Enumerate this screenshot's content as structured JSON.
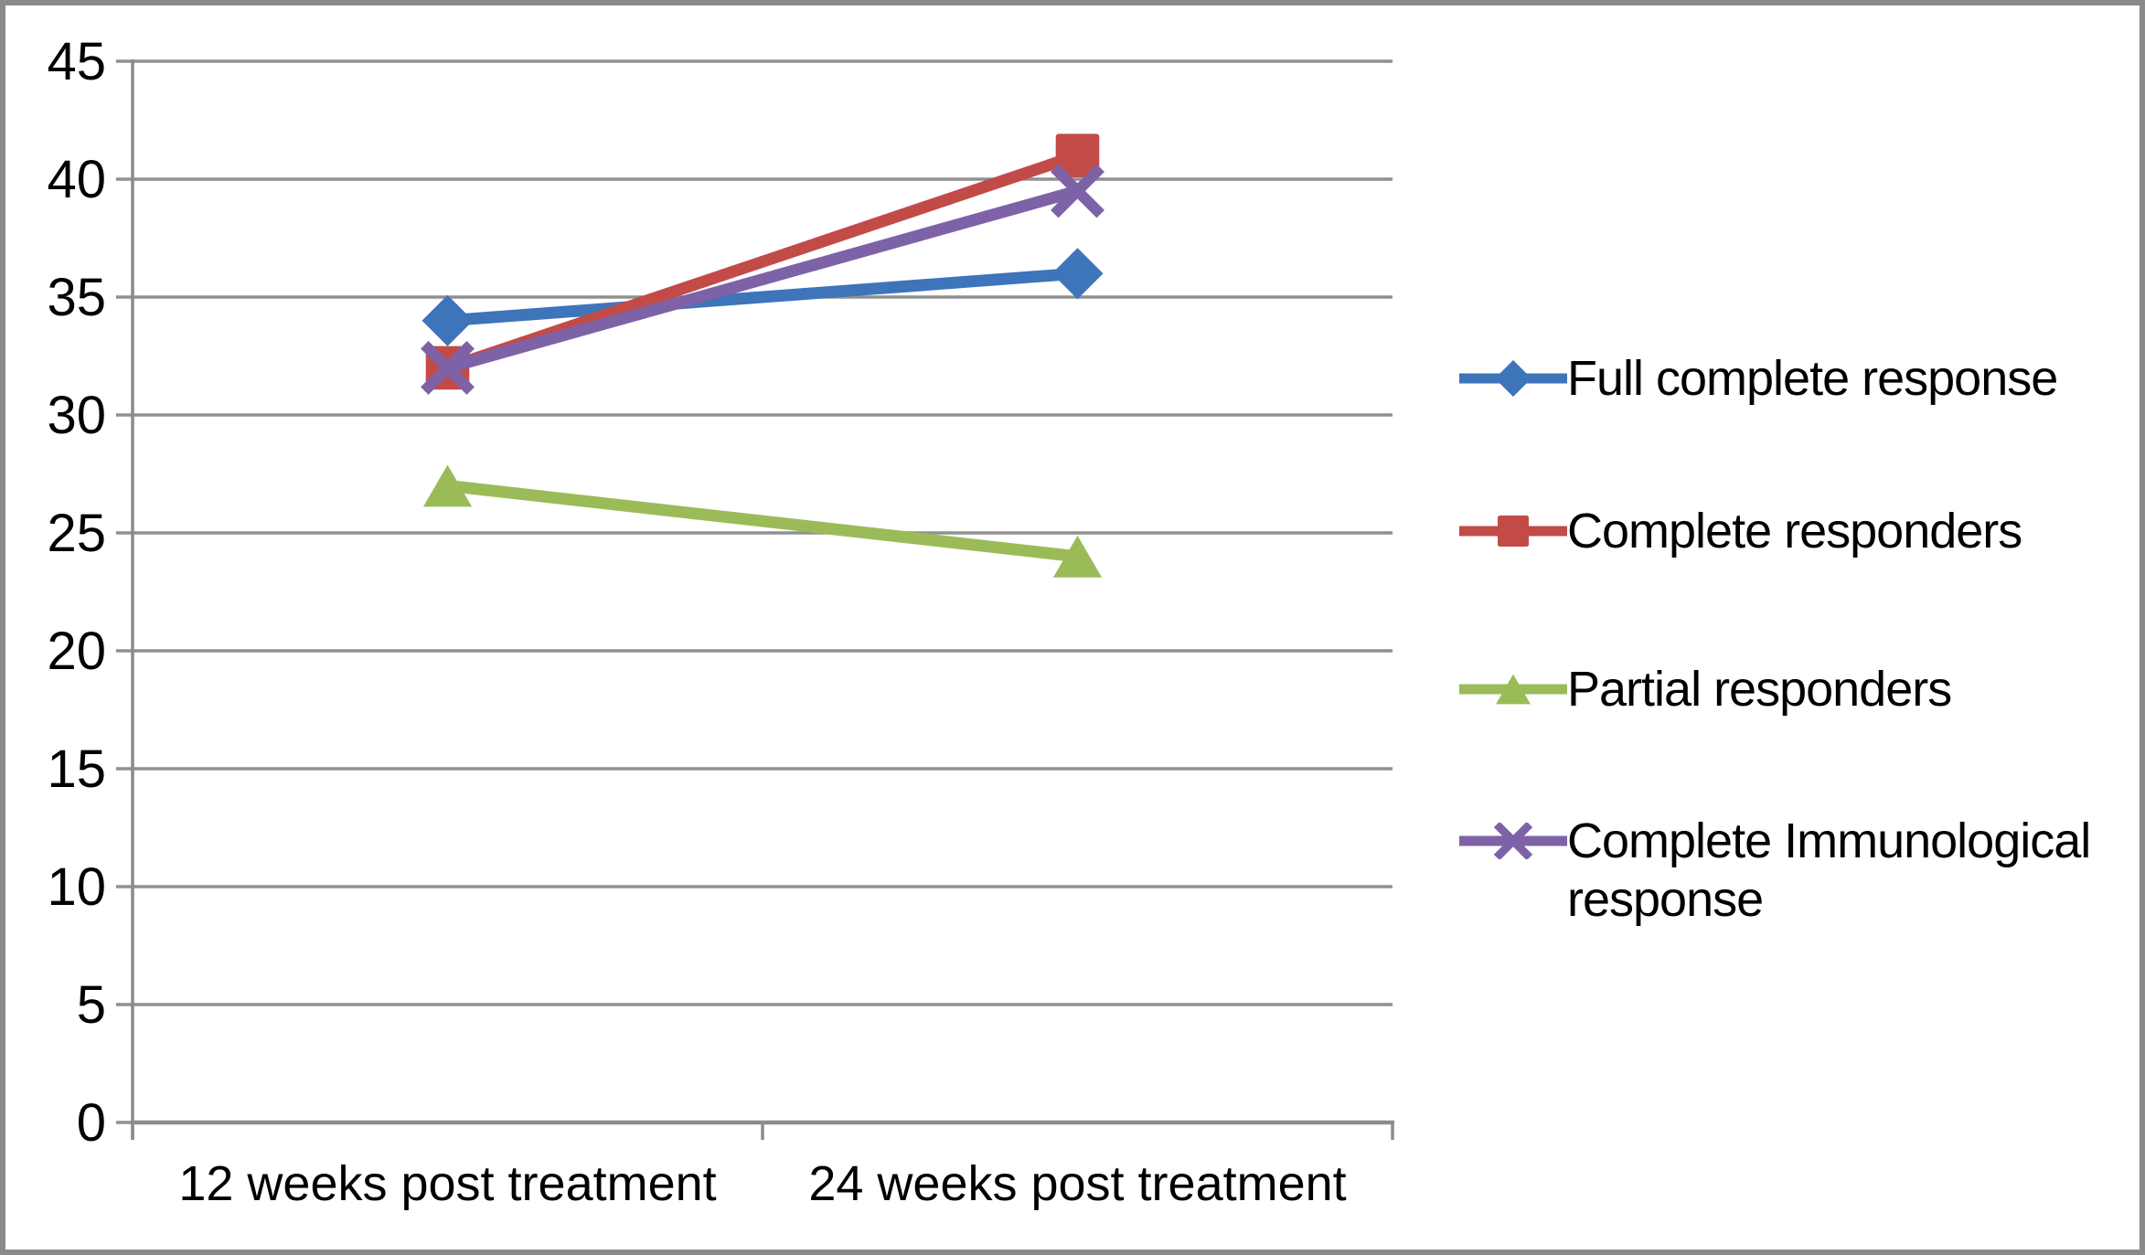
{
  "chart_data": {
    "type": "line",
    "categories": [
      "12 weeks post treatment",
      "24 weeks post treatment"
    ],
    "series": [
      {
        "name": "Full complete response",
        "marker": "diamond",
        "color": "#3E74BA",
        "values": [
          34,
          36
        ]
      },
      {
        "name": "Complete responders",
        "marker": "square",
        "color": "#C24B48",
        "values": [
          32,
          41
        ]
      },
      {
        "name": "Partial responders",
        "marker": "triangle",
        "color": "#9BBB59",
        "values": [
          27,
          24
        ]
      },
      {
        "name": "Complete Immunological response",
        "marker": "x",
        "color": "#7D62A8",
        "values": [
          32,
          39.5
        ]
      }
    ],
    "ylim": [
      0,
      45
    ],
    "ytick_step": 5,
    "yticks": [
      0,
      5,
      10,
      15,
      20,
      25,
      30,
      35,
      40,
      45
    ],
    "grid": true,
    "legend_position": "right"
  },
  "colors": {
    "background": "#FFFFFF",
    "gridline": "#909090",
    "axis": "#8C8C8C",
    "frame_border": "#8A8A8A",
    "text": "#000000"
  }
}
